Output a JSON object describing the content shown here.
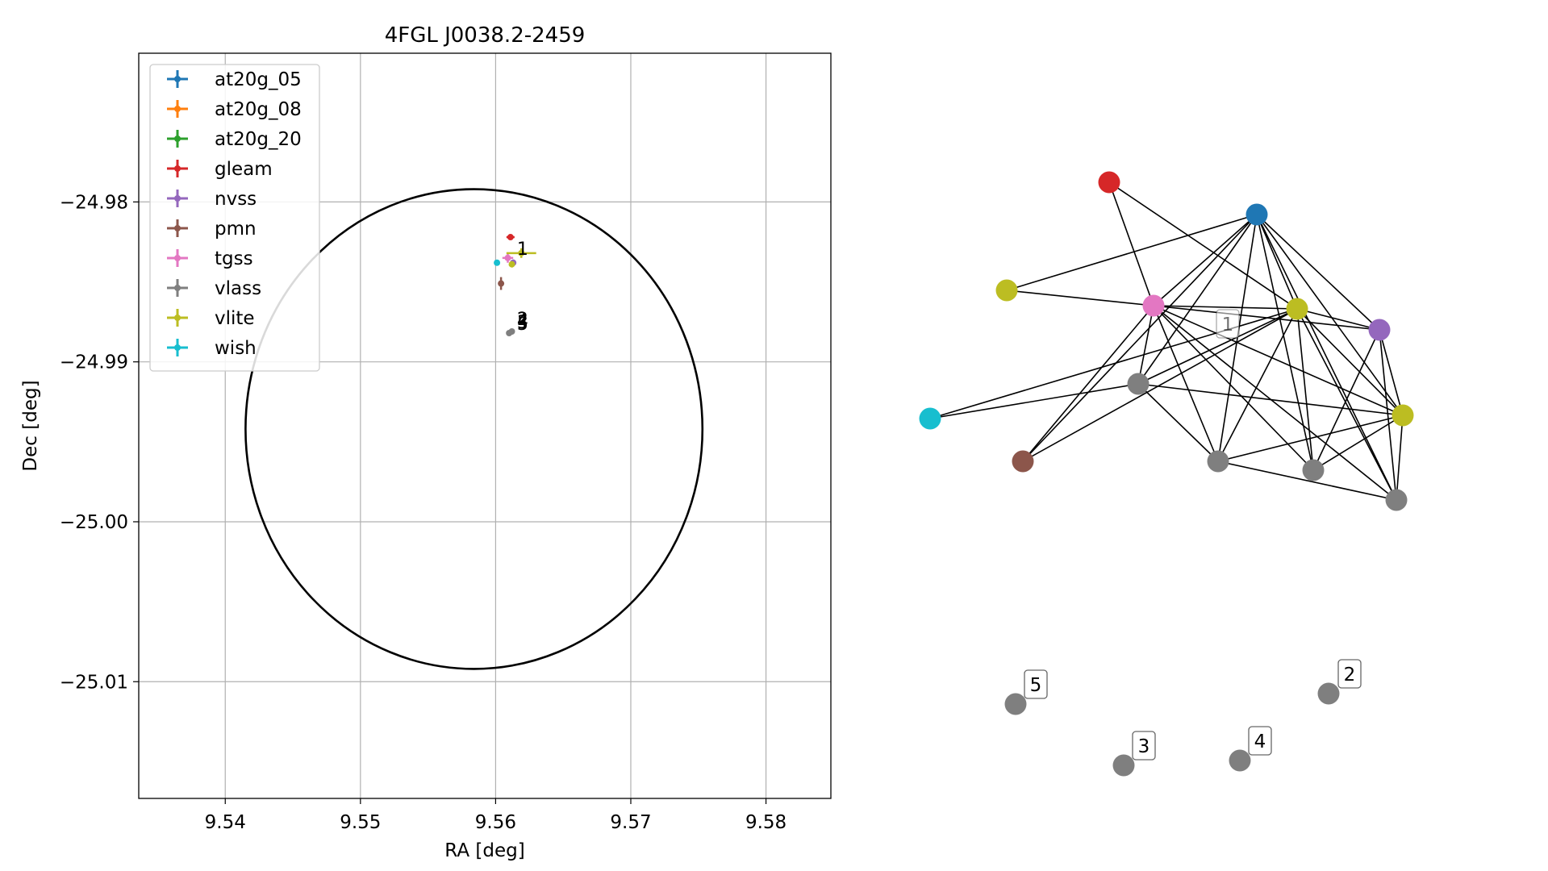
{
  "chart_data": [
    {
      "type": "scatter",
      "title": "4FGL J0038.2-2459",
      "xlabel": "RA [deg]",
      "ylabel": "Dec [deg]",
      "xlim": [
        9.5336,
        9.5848
      ],
      "ylim": [
        -25.0173,
        -24.9707
      ],
      "xticks": [
        9.54,
        9.55,
        9.56,
        9.57,
        9.58
      ],
      "xtick_labels": [
        "9.54",
        "9.55",
        "9.56",
        "9.57",
        "9.58"
      ],
      "yticks": [
        -24.98,
        -24.99,
        -25.0,
        -25.01
      ],
      "ytick_labels": [
        "−24.98",
        "−24.99",
        "−25.00",
        "−25.01"
      ],
      "grid": true,
      "legend": "top-left",
      "legend_entries": [
        {
          "label": "at20g_05",
          "color": "#1f77b4"
        },
        {
          "label": "at20g_08",
          "color": "#ff7f0e"
        },
        {
          "label": "at20g_20",
          "color": "#2ca02c"
        },
        {
          "label": "gleam",
          "color": "#d62728"
        },
        {
          "label": "nvss",
          "color": "#9467bd"
        },
        {
          "label": "pmn",
          "color": "#8c564b"
        },
        {
          "label": "tgss",
          "color": "#e377c2"
        },
        {
          "label": "vlass",
          "color": "#7f7f7f"
        },
        {
          "label": "vlite",
          "color": "#bcbd22"
        },
        {
          "label": "wish",
          "color": "#17becf"
        }
      ],
      "circle": {
        "ra": 9.5584,
        "dec": -24.9942,
        "radius_ra": 0.0169,
        "radius_dec": 0.015
      },
      "points": [
        {
          "name": "gleam",
          "ra": 9.5611,
          "dec": -24.9822,
          "color": "#d62728",
          "xerr": 0.0003,
          "yerr": 0.0001
        },
        {
          "name": "nvss",
          "ra": 9.5613,
          "dec": -24.9838,
          "color": "#9467bd",
          "xerr": 0.0001,
          "yerr": 0.0002
        },
        {
          "name": "pmn",
          "ra": 9.5604,
          "dec": -24.9851,
          "color": "#8c564b",
          "xerr": 0.0001,
          "yerr": 0.0004
        },
        {
          "name": "tgss",
          "ra": 9.5609,
          "dec": -24.9835,
          "color": "#e377c2",
          "xerr": 0.0004,
          "yerr": 0.0003
        },
        {
          "name": "vlite",
          "ra": 9.5619,
          "dec": -24.9832,
          "color": "#bcbd22",
          "xerr": 0.0011,
          "yerr": 0.0003
        },
        {
          "name": "vlite",
          "ra": 9.5612,
          "dec": -24.9839,
          "color": "#bcbd22",
          "xerr": 0.0002,
          "yerr": 0.0001
        },
        {
          "name": "wish",
          "ra": 9.5601,
          "dec": -24.9838,
          "color": "#17becf",
          "xerr": 0.0,
          "yerr": 0.0
        },
        {
          "name": "vlass",
          "ra": 9.561,
          "dec": -24.9882,
          "color": "#7f7f7f",
          "xerr": 0.0,
          "yerr": 0.0
        },
        {
          "name": "vlass",
          "ra": 9.5612,
          "dec": -24.9881,
          "color": "#7f7f7f",
          "xerr": 0.0,
          "yerr": 0.0
        }
      ],
      "annotations": [
        {
          "text": "1",
          "ra": 9.562,
          "dec": -24.9829
        },
        {
          "text": "2",
          "ra": 9.562,
          "dec": -24.9873
        },
        {
          "text": "3",
          "ra": 9.562,
          "dec": -24.9875
        },
        {
          "text": "4",
          "ra": 9.562,
          "dec": -24.9874
        },
        {
          "text": "5",
          "ra": 9.562,
          "dec": -24.9876
        }
      ]
    },
    {
      "type": "network",
      "nodes": [
        {
          "id": "gleam",
          "color": "#d62728"
        },
        {
          "id": "at20g",
          "color": "#1f77b4"
        },
        {
          "id": "vlite_a",
          "color": "#bcbd22"
        },
        {
          "id": "tgss",
          "color": "#e377c2"
        },
        {
          "id": "vlite_b",
          "color": "#bcbd22"
        },
        {
          "id": "nvss",
          "color": "#9467bd"
        },
        {
          "id": "wish",
          "color": "#17becf"
        },
        {
          "id": "vlass_a",
          "color": "#7f7f7f"
        },
        {
          "id": "vlite_c",
          "color": "#bcbd22"
        },
        {
          "id": "pmn",
          "color": "#8c564b"
        },
        {
          "id": "vlass_b",
          "color": "#7f7f7f"
        },
        {
          "id": "vlass_c",
          "color": "#7f7f7f"
        },
        {
          "id": "vlass_d",
          "color": "#7f7f7f"
        },
        {
          "id": "iso5",
          "color": "#7f7f7f"
        },
        {
          "id": "iso2",
          "color": "#7f7f7f"
        },
        {
          "id": "iso3",
          "color": "#7f7f7f"
        },
        {
          "id": "iso4",
          "color": "#7f7f7f"
        }
      ],
      "edges": [
        [
          "gleam",
          "tgss"
        ],
        [
          "gleam",
          "vlite_b"
        ],
        [
          "at20g",
          "vlite_a"
        ],
        [
          "at20g",
          "tgss"
        ],
        [
          "at20g",
          "vlite_b"
        ],
        [
          "at20g",
          "nvss"
        ],
        [
          "at20g",
          "vlass_a"
        ],
        [
          "at20g",
          "vlite_c"
        ],
        [
          "at20g",
          "pmn"
        ],
        [
          "at20g",
          "vlass_b"
        ],
        [
          "at20g",
          "vlass_c"
        ],
        [
          "at20g",
          "vlass_d"
        ],
        [
          "vlite_a",
          "tgss"
        ],
        [
          "tgss",
          "vlite_b"
        ],
        [
          "tgss",
          "nvss"
        ],
        [
          "tgss",
          "vlass_a"
        ],
        [
          "tgss",
          "vlite_c"
        ],
        [
          "tgss",
          "pmn"
        ],
        [
          "tgss",
          "vlass_b"
        ],
        [
          "tgss",
          "vlass_c"
        ],
        [
          "tgss",
          "vlass_d"
        ],
        [
          "vlite_b",
          "wish"
        ],
        [
          "vlite_b",
          "nvss"
        ],
        [
          "vlite_b",
          "vlass_a"
        ],
        [
          "vlite_b",
          "vlite_c"
        ],
        [
          "vlite_b",
          "pmn"
        ],
        [
          "vlite_b",
          "vlass_b"
        ],
        [
          "vlite_b",
          "vlass_c"
        ],
        [
          "vlite_b",
          "vlass_d"
        ],
        [
          "nvss",
          "vlass_c"
        ],
        [
          "nvss",
          "vlass_d"
        ],
        [
          "nvss",
          "vlite_c"
        ],
        [
          "wish",
          "vlass_a"
        ],
        [
          "vlass_a",
          "vlite_c"
        ],
        [
          "vlass_a",
          "vlass_b"
        ],
        [
          "vlite_c",
          "vlass_b"
        ],
        [
          "vlite_c",
          "vlass_c"
        ],
        [
          "vlite_c",
          "vlass_d"
        ],
        [
          "vlass_b",
          "vlass_d"
        ]
      ],
      "labels": [
        {
          "node": "vlite_b",
          "text": "1"
        },
        {
          "node": "iso2",
          "text": "2"
        },
        {
          "node": "iso3",
          "text": "3"
        },
        {
          "node": "iso4",
          "text": "4"
        },
        {
          "node": "iso5",
          "text": "5"
        }
      ]
    }
  ]
}
